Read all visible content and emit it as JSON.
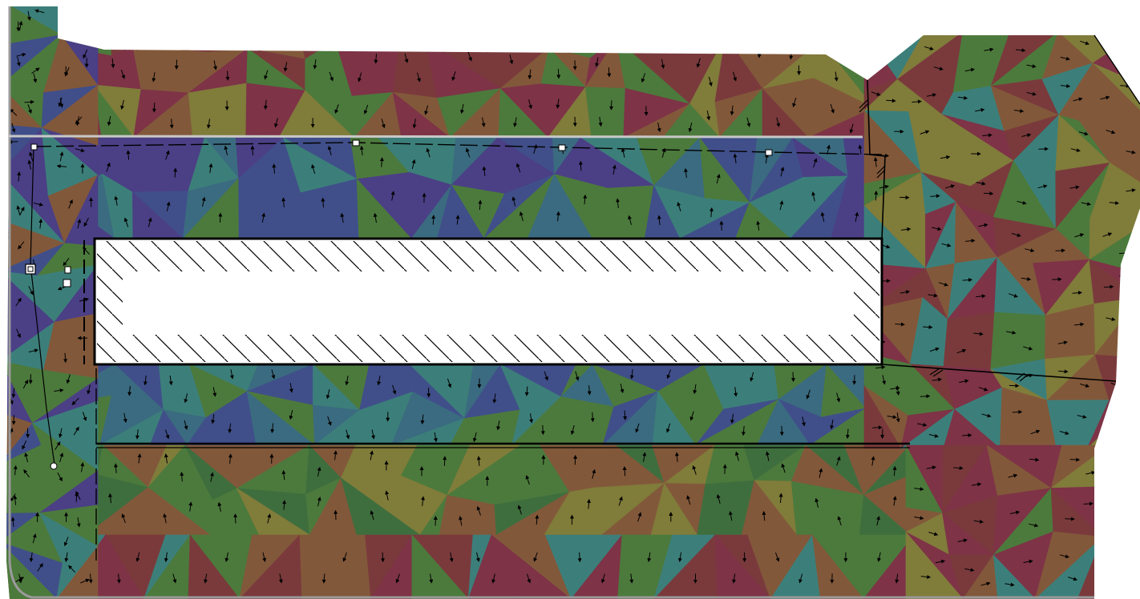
{
  "map": {
    "kind": "site-slope-aspect-map",
    "palette": {
      "red": "#7a3a3c",
      "maroon": "#7e3347",
      "brown": "#82583a",
      "olive": "#807c3a",
      "green": "#4c7a3c",
      "dark_green": "#3f6e3e",
      "teal": "#3c7f7a",
      "blue_teal": "#3b6b80",
      "blue": "#404f8a",
      "purple": "#4b3f86",
      "violet": "#5a3e8f",
      "void_fill": "#ffffff",
      "outline": "#000000",
      "boundary_grey": "#9a9a9a",
      "easement_line": "#c8c8c8"
    },
    "regions": [
      {
        "id": "north-strip",
        "aspect": "south",
        "shades": [
          "red",
          "brown",
          "olive",
          "maroon",
          "green"
        ]
      },
      {
        "id": "building-north-band",
        "aspect": "north",
        "shades": [
          "teal",
          "green",
          "blue",
          "purple",
          "blue_teal"
        ]
      },
      {
        "id": "building-south-band",
        "aspect": "south",
        "shades": [
          "teal",
          "blue_teal",
          "green",
          "blue"
        ]
      },
      {
        "id": "road-north-band",
        "aspect": "north",
        "shades": [
          "green",
          "olive",
          "dark_green",
          "brown"
        ]
      },
      {
        "id": "south-strip",
        "aspect": "south",
        "shades": [
          "red",
          "maroon",
          "brown",
          "green",
          "teal"
        ]
      },
      {
        "id": "east-parcel",
        "aspect": "east",
        "shades": [
          "brown",
          "maroon",
          "green",
          "olive",
          "red",
          "teal"
        ]
      },
      {
        "id": "west-edge",
        "aspect": "mixed",
        "shades": [
          "blue",
          "purple",
          "teal",
          "green",
          "brown"
        ]
      }
    ],
    "building": {
      "label": "",
      "fill": "hatched"
    },
    "markers": [
      {
        "id": "survey-point-1"
      },
      {
        "id": "survey-point-2"
      },
      {
        "id": "survey-point-3"
      },
      {
        "id": "survey-point-4"
      },
      {
        "id": "survey-point-5"
      },
      {
        "id": "well-head"
      },
      {
        "id": "utility-box-1"
      },
      {
        "id": "utility-box-2"
      }
    ]
  }
}
